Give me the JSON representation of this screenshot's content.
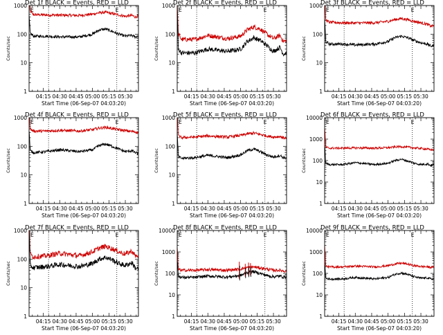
{
  "chart_data": [
    {
      "type": "line",
      "title": "Det 1f BLACK = Events, RED = LLD",
      "xlabel": "Start Time (06-Sep-07 04:03:20)",
      "ylabel": "Counts/sec",
      "yscale": "log",
      "ylim": [
        1,
        1000
      ],
      "ytick_values": [
        1,
        10,
        100,
        1000
      ],
      "ytick_labels": [
        "1",
        "10",
        "100",
        "1000"
      ],
      "xlim": [
        4.033,
        5.7
      ],
      "xtick_values": [
        4.25,
        4.5,
        4.75,
        5.0,
        5.25,
        5.5
      ],
      "xtick_labels": [
        "04:15",
        "04:30",
        "04:45",
        "05:00",
        "05:15",
        "05:30"
      ],
      "vlines": [
        4.33,
        5.37
      ],
      "markers": [
        "E",
        "E"
      ],
      "spike_end": true,
      "noise": 0.05,
      "series": [
        {
          "color": "#cc0000",
          "x": [
            4.033,
            4.05,
            4.1,
            4.3,
            4.5,
            4.8,
            5.0,
            5.1,
            5.2,
            5.3,
            5.4,
            5.5,
            5.6,
            5.65,
            5.7
          ],
          "y": [
            800,
            650,
            480,
            470,
            460,
            450,
            500,
            560,
            580,
            520,
            470,
            420,
            450,
            400,
            430
          ]
        },
        {
          "color": "#000000",
          "x": [
            4.033,
            4.05,
            4.1,
            4.3,
            4.5,
            4.8,
            5.0,
            5.1,
            5.2,
            5.3,
            5.4,
            5.5,
            5.6,
            5.65,
            5.7
          ],
          "y": [
            150,
            110,
            85,
            85,
            80,
            80,
            100,
            140,
            150,
            125,
            100,
            85,
            90,
            80,
            85
          ]
        }
      ]
    },
    {
      "type": "line",
      "title": "Det 2f BLACK = Events, RED = LLD",
      "xlabel": "Start Time (06-Sep-07 04:03:20)",
      "ylabel": "Counts/sec",
      "yscale": "log",
      "ylim": [
        1,
        1000
      ],
      "ytick_values": [
        1,
        10,
        100,
        1000
      ],
      "ytick_labels": [
        "1",
        "10",
        "100",
        "1000"
      ],
      "xlim": [
        4.033,
        5.7
      ],
      "xtick_values": [
        4.25,
        4.5,
        4.75,
        5.0,
        5.25,
        5.5
      ],
      "xtick_labels": [
        "04:15",
        "04:30",
        "04:45",
        "05:00",
        "05:15",
        "05:30"
      ],
      "vlines": [
        4.33,
        5.37
      ],
      "markers": [
        "E",
        "E"
      ],
      "spike_end": true,
      "noise": 0.08,
      "series": [
        {
          "color": "#cc0000",
          "x": [
            4.033,
            4.05,
            4.1,
            4.3,
            4.5,
            4.8,
            5.0,
            5.1,
            5.2,
            5.3,
            5.4,
            5.5,
            5.6,
            5.65,
            5.7
          ],
          "y": [
            500,
            100,
            65,
            65,
            90,
            70,
            85,
            140,
            180,
            150,
            100,
            70,
            90,
            55,
            60
          ]
        },
        {
          "color": "#000000",
          "x": [
            4.033,
            4.05,
            4.1,
            4.3,
            4.5,
            4.8,
            5.0,
            5.1,
            5.2,
            5.3,
            5.4,
            5.5,
            5.6,
            5.65,
            5.7
          ],
          "y": [
            250,
            30,
            22,
            22,
            30,
            25,
            30,
            55,
            75,
            60,
            40,
            25,
            35,
            20,
            22
          ]
        }
      ]
    },
    {
      "type": "line",
      "title": "Det 3f BLACK = Events, RED = LLD",
      "xlabel": "Start Time (06-Sep-07 04:03:20)",
      "ylabel": "Counts/sec",
      "yscale": "log",
      "ylim": [
        1,
        1000
      ],
      "ytick_values": [
        1,
        10,
        100,
        1000
      ],
      "ytick_labels": [
        "1",
        "10",
        "100",
        "1000"
      ],
      "xlim": [
        4.033,
        5.7
      ],
      "xtick_values": [
        4.25,
        4.5,
        4.75,
        5.0,
        5.25,
        5.5
      ],
      "xtick_labels": [
        "04:15",
        "04:30",
        "04:45",
        "05:00",
        "05:15",
        "05:30"
      ],
      "vlines": [
        4.33,
        5.37
      ],
      "markers": [
        "E",
        "E"
      ],
      "spike_end": true,
      "noise": 0.05,
      "series": [
        {
          "color": "#cc0000",
          "x": [
            4.033,
            4.05,
            4.1,
            4.3,
            4.5,
            4.8,
            5.0,
            5.1,
            5.2,
            5.3,
            5.4,
            5.5,
            5.6,
            5.65,
            5.7
          ],
          "y": [
            700,
            320,
            260,
            250,
            245,
            250,
            280,
            320,
            350,
            320,
            280,
            250,
            220,
            190,
            200
          ]
        },
        {
          "color": "#000000",
          "x": [
            4.033,
            4.05,
            4.1,
            4.3,
            4.5,
            4.8,
            5.0,
            5.1,
            5.2,
            5.3,
            5.4,
            5.5,
            5.6,
            5.65,
            5.7
          ],
          "y": [
            120,
            55,
            45,
            45,
            42,
            45,
            55,
            75,
            85,
            75,
            60,
            50,
            45,
            38,
            40
          ]
        }
      ]
    },
    {
      "type": "line",
      "title": "Det 4f BLACK = Events, RED = LLD",
      "xlabel": "Start Time (06-Sep-07 04:03:20)",
      "ylabel": "Counts/sec",
      "yscale": "log",
      "ylim": [
        1,
        1000
      ],
      "ytick_values": [
        1,
        10,
        100,
        1000
      ],
      "ytick_labels": [
        "1",
        "10",
        "100",
        "1000"
      ],
      "xlim": [
        4.033,
        5.7
      ],
      "xtick_values": [
        4.25,
        4.5,
        4.75,
        5.0,
        5.25,
        5.5
      ],
      "xtick_labels": [
        "04:15",
        "04:30",
        "04:45",
        "05:00",
        "05:15",
        "05:30"
      ],
      "vlines": [
        4.33,
        5.37
      ],
      "markers": [
        "E",
        "E"
      ],
      "spike_end": true,
      "noise": 0.05,
      "series": [
        {
          "color": "#cc0000",
          "x": [
            4.033,
            4.05,
            4.1,
            4.3,
            4.5,
            4.8,
            5.0,
            5.1,
            5.2,
            5.3,
            5.4,
            5.5,
            5.6,
            5.65,
            5.7
          ],
          "y": [
            700,
            400,
            340,
            340,
            360,
            340,
            380,
            430,
            460,
            420,
            380,
            350,
            330,
            320,
            300
          ]
        },
        {
          "color": "#000000",
          "x": [
            4.033,
            4.05,
            4.1,
            4.3,
            4.5,
            4.8,
            5.0,
            5.1,
            5.2,
            5.3,
            5.4,
            5.5,
            5.6,
            5.65,
            5.7
          ],
          "y": [
            130,
            70,
            60,
            65,
            75,
            65,
            75,
            105,
            120,
            100,
            80,
            65,
            70,
            60,
            55
          ]
        }
      ]
    },
    {
      "type": "line",
      "title": "Det 5f BLACK = Events, RED = LLD",
      "xlabel": "Start Time (06-Sep-07 04:03:20)",
      "ylabel": "Counts/sec",
      "yscale": "log",
      "ylim": [
        1,
        1000
      ],
      "ytick_values": [
        1,
        10,
        100,
        1000
      ],
      "ytick_labels": [
        "1",
        "10",
        "100",
        "1000"
      ],
      "xlim": [
        4.033,
        5.7
      ],
      "xtick_values": [
        4.25,
        4.5,
        4.75,
        5.0,
        5.25,
        5.5
      ],
      "xtick_labels": [
        "04:15",
        "04:30",
        "04:45",
        "05:00",
        "05:15",
        "05:30"
      ],
      "vlines": [
        4.33,
        5.37
      ],
      "markers": [
        "E",
        "E"
      ],
      "spike_end": true,
      "noise": 0.05,
      "series": [
        {
          "color": "#cc0000",
          "x": [
            4.033,
            4.05,
            4.1,
            4.3,
            4.5,
            4.8,
            5.0,
            5.1,
            5.2,
            5.3,
            5.4,
            5.5,
            5.6,
            5.65,
            5.7
          ],
          "y": [
            600,
            230,
            200,
            210,
            230,
            210,
            240,
            270,
            290,
            260,
            230,
            210,
            220,
            200,
            195
          ]
        },
        {
          "color": "#000000",
          "x": [
            4.033,
            4.05,
            4.1,
            4.3,
            4.5,
            4.8,
            5.0,
            5.1,
            5.2,
            5.3,
            5.4,
            5.5,
            5.6,
            5.65,
            5.7
          ],
          "y": [
            100,
            42,
            38,
            40,
            48,
            40,
            50,
            70,
            80,
            65,
            50,
            42,
            48,
            40,
            38
          ]
        }
      ]
    },
    {
      "type": "line",
      "title": "Det 6f BLACK = Events, RED = LLD",
      "xlabel": "Start Time (06-Sep-07 04:03:20)",
      "ylabel": "Counts/sec",
      "yscale": "log",
      "ylim": [
        1,
        10000
      ],
      "ytick_values": [
        1,
        10,
        100,
        1000,
        10000
      ],
      "ytick_labels": [
        "1",
        "10",
        "100",
        "1000",
        "10000"
      ],
      "xlim": [
        4.033,
        5.7
      ],
      "xtick_values": [
        4.25,
        4.5,
        4.75,
        5.0,
        5.25,
        5.5
      ],
      "xtick_labels": [
        "04:15",
        "04:30",
        "04:45",
        "05:00",
        "05:15",
        "05:30"
      ],
      "vlines": [
        4.33,
        5.37
      ],
      "markers": [
        "E",
        "E"
      ],
      "spike_end": true,
      "noise": 0.05,
      "series": [
        {
          "color": "#cc0000",
          "x": [
            4.033,
            4.05,
            4.1,
            4.3,
            4.5,
            4.8,
            5.0,
            5.1,
            5.2,
            5.3,
            5.4,
            5.5,
            5.6,
            5.65,
            5.7
          ],
          "y": [
            1200,
            420,
            380,
            380,
            390,
            380,
            400,
            430,
            450,
            420,
            390,
            370,
            340,
            320,
            330
          ]
        },
        {
          "color": "#000000",
          "x": [
            4.033,
            4.05,
            4.1,
            4.3,
            4.5,
            4.8,
            5.0,
            5.1,
            5.2,
            5.3,
            5.4,
            5.5,
            5.6,
            5.65,
            5.7
          ],
          "y": [
            200,
            75,
            65,
            65,
            80,
            65,
            75,
            100,
            115,
            95,
            75,
            65,
            70,
            60,
            65
          ]
        }
      ]
    },
    {
      "type": "line",
      "title": "Det 7f BLACK = Events, RED = LLD",
      "xlabel": "Start Time (06-Sep-07 04:03:20)",
      "ylabel": "Counts/sec",
      "yscale": "log",
      "ylim": [
        1,
        1000
      ],
      "ytick_values": [
        1,
        10,
        100,
        1000
      ],
      "ytick_labels": [
        "1",
        "10",
        "100",
        "1000"
      ],
      "xlim": [
        4.033,
        5.7
      ],
      "xtick_values": [
        4.25,
        4.5,
        4.75,
        5.0,
        5.25,
        5.5
      ],
      "xtick_labels": [
        "04:15",
        "04:30",
        "04:45",
        "05:00",
        "05:15",
        "05:30"
      ],
      "vlines": [
        4.33,
        5.37
      ],
      "markers": [
        "E",
        "E"
      ],
      "spike_end": true,
      "noise": 0.09,
      "series": [
        {
          "color": "#cc0000",
          "x": [
            4.033,
            4.05,
            4.1,
            4.3,
            4.5,
            4.8,
            5.0,
            5.1,
            5.2,
            5.3,
            5.4,
            5.5,
            5.6,
            5.65,
            5.7
          ],
          "y": [
            900,
            150,
            120,
            130,
            160,
            130,
            180,
            240,
            280,
            230,
            180,
            150,
            190,
            130,
            130
          ]
        },
        {
          "color": "#000000",
          "x": [
            4.033,
            4.05,
            4.1,
            4.3,
            4.5,
            4.8,
            5.0,
            5.1,
            5.2,
            5.3,
            5.4,
            5.5,
            5.6,
            5.65,
            5.7
          ],
          "y": [
            400,
            60,
            50,
            55,
            65,
            55,
            70,
            100,
            115,
            95,
            70,
            60,
            75,
            50,
            45
          ]
        }
      ]
    },
    {
      "type": "line",
      "title": "Det 8f BLACK = Events, RED = LLD",
      "xlabel": "Start Time (06-Sep-07 04:03:20)",
      "ylabel": "Counts/sec",
      "yscale": "log",
      "ylim": [
        1,
        10000
      ],
      "ytick_values": [
        1,
        10,
        100,
        1000,
        10000
      ],
      "ytick_labels": [
        "1",
        "10",
        "100",
        "1000",
        "10000"
      ],
      "xlim": [
        4.033,
        5.7
      ],
      "xtick_values": [
        4.25,
        4.5,
        4.75,
        5.0,
        5.25,
        5.5
      ],
      "xtick_labels": [
        "04:15",
        "04:30",
        "04:45",
        "05:00",
        "05:15",
        "05:30"
      ],
      "vlines": [
        4.33,
        5.37
      ],
      "markers": [
        "E",
        "E"
      ],
      "spike_end": true,
      "noise": 0.07,
      "spikes": [
        {
          "x": 4.98,
          "y": 350
        },
        {
          "x": 5.07,
          "y": 280
        },
        {
          "x": 5.12,
          "y": 320
        },
        {
          "x": 5.15,
          "y": 300
        }
      ],
      "series": [
        {
          "color": "#cc0000",
          "x": [
            4.033,
            4.05,
            4.1,
            4.3,
            4.5,
            4.8,
            5.0,
            5.1,
            5.2,
            5.3,
            5.4,
            5.5,
            5.6,
            5.65,
            5.7
          ],
          "y": [
            600,
            160,
            140,
            140,
            150,
            140,
            160,
            190,
            200,
            180,
            160,
            140,
            140,
            130,
            130
          ]
        },
        {
          "color": "#000000",
          "x": [
            4.033,
            4.05,
            4.1,
            4.3,
            4.5,
            4.8,
            5.0,
            5.1,
            5.2,
            5.3,
            5.4,
            5.5,
            5.6,
            5.65,
            5.7
          ],
          "y": [
            150,
            75,
            65,
            65,
            75,
            68,
            80,
            110,
            120,
            100,
            80,
            70,
            75,
            68,
            68
          ]
        }
      ]
    },
    {
      "type": "line",
      "title": "Det 9f BLACK = Events, RED = LLD",
      "xlabel": "Start Time (06-Sep-07 04:03:20)",
      "ylabel": "Counts/sec",
      "yscale": "log",
      "ylim": [
        1,
        10000
      ],
      "ytick_values": [
        1,
        10,
        100,
        1000,
        10000
      ],
      "ytick_labels": [
        "1",
        "10",
        "100",
        "1000",
        "10000"
      ],
      "xlim": [
        4.033,
        5.7
      ],
      "xtick_values": [
        4.25,
        4.5,
        4.75,
        5.0,
        5.25,
        5.5
      ],
      "xtick_labels": [
        "04:15",
        "04:30",
        "04:45",
        "05:00",
        "05:15",
        "05:30"
      ],
      "vlines": [
        4.33,
        5.37
      ],
      "markers": [
        "E",
        "E"
      ],
      "spike_end": true,
      "noise": 0.05,
      "series": [
        {
          "color": "#cc0000",
          "x": [
            4.033,
            4.05,
            4.1,
            4.3,
            4.5,
            4.8,
            5.0,
            5.1,
            5.2,
            5.3,
            5.4,
            5.5,
            5.6,
            5.65,
            5.7
          ],
          "y": [
            700,
            220,
            200,
            200,
            220,
            200,
            230,
            270,
            300,
            270,
            230,
            210,
            200,
            190,
            200
          ]
        },
        {
          "color": "#000000",
          "x": [
            4.033,
            4.05,
            4.1,
            4.3,
            4.5,
            4.8,
            5.0,
            5.1,
            5.2,
            5.3,
            5.4,
            5.5,
            5.6,
            5.65,
            5.7
          ],
          "y": [
            120,
            60,
            55,
            55,
            65,
            55,
            65,
            90,
            105,
            90,
            70,
            60,
            62,
            55,
            55
          ]
        }
      ]
    }
  ]
}
